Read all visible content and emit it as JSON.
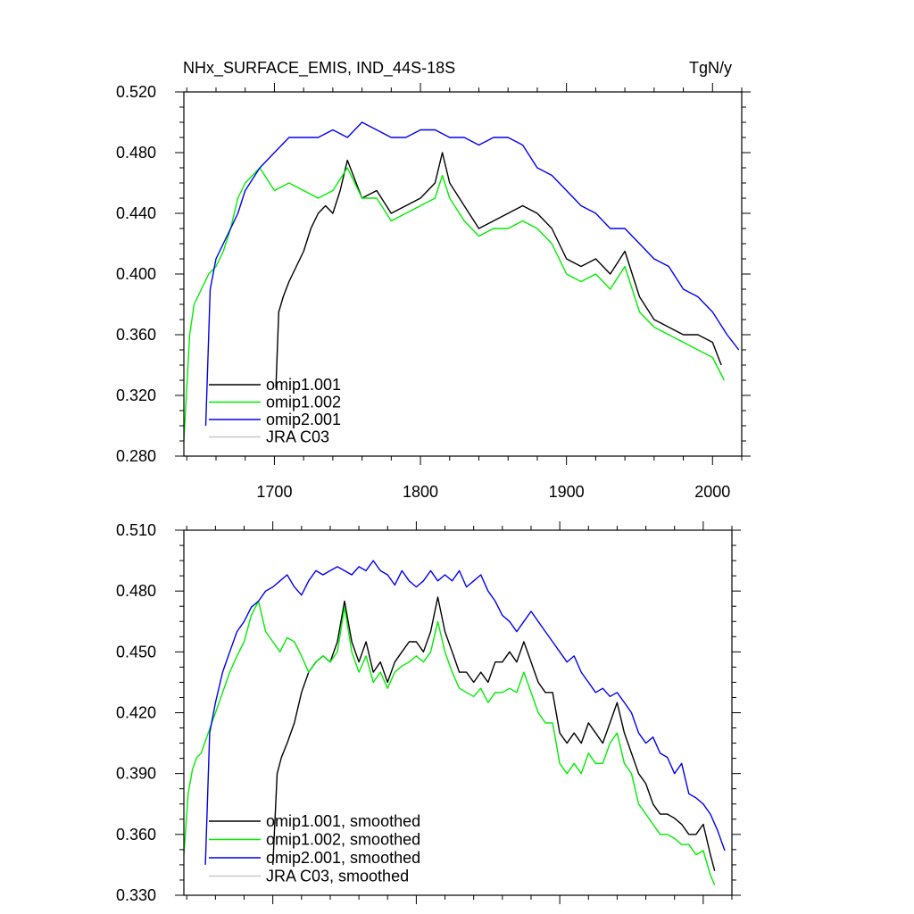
{
  "figure": {
    "title_left": "NHx_SURFACE_EMIS, IND_44S-18S",
    "title_right": "TgN/y"
  },
  "colors": {
    "omip1_001": "#000000",
    "omip1_002": "#00ee00",
    "omip2_001": "#0000ee",
    "jra_c03": "#c8c8c8"
  },
  "chart_data": [
    {
      "type": "line",
      "title": "NHx_SURFACE_EMIS, IND_44S-18S",
      "units": "TgN/y",
      "xlabel": "",
      "ylabel": "",
      "xlim": [
        1638,
        2020
      ],
      "ylim": [
        0.28,
        0.52
      ],
      "grid": false,
      "legend_position": "bottom-left",
      "xticks": [
        1700,
        1800,
        1900,
        2000
      ],
      "xtick_labels": [
        "1700",
        "1800",
        "1900",
        "2000"
      ],
      "yticks": [
        0.28,
        0.32,
        0.36,
        0.4,
        0.44,
        0.48,
        0.52
      ],
      "ytick_labels": [
        "0.280",
        "0.320",
        "0.360",
        "0.400",
        "0.440",
        "0.480",
        "0.520"
      ],
      "series": [
        {
          "name": "omip1.001",
          "color_key": "omip1_001",
          "x": [
            1701,
            1703,
            1706,
            1710,
            1715,
            1720,
            1725,
            1730,
            1735,
            1740,
            1745,
            1750,
            1760,
            1770,
            1780,
            1790,
            1800,
            1810,
            1815,
            1820,
            1830,
            1840,
            1850,
            1860,
            1870,
            1880,
            1890,
            1900,
            1910,
            1920,
            1930,
            1940,
            1950,
            1960,
            1970,
            1980,
            1990,
            2000,
            2006
          ],
          "y": [
            0.325,
            0.375,
            0.385,
            0.395,
            0.405,
            0.415,
            0.43,
            0.44,
            0.445,
            0.44,
            0.455,
            0.475,
            0.45,
            0.455,
            0.44,
            0.445,
            0.45,
            0.46,
            0.48,
            0.46,
            0.445,
            0.43,
            0.435,
            0.44,
            0.445,
            0.44,
            0.43,
            0.41,
            0.405,
            0.41,
            0.4,
            0.415,
            0.385,
            0.37,
            0.365,
            0.36,
            0.36,
            0.355,
            0.34
          ]
        },
        {
          "name": "omip1.002",
          "color_key": "omip1_002",
          "x": [
            1638,
            1642,
            1645,
            1650,
            1655,
            1660,
            1665,
            1670,
            1675,
            1680,
            1685,
            1690,
            1700,
            1710,
            1720,
            1730,
            1740,
            1750,
            1760,
            1770,
            1780,
            1790,
            1800,
            1810,
            1815,
            1820,
            1830,
            1840,
            1850,
            1860,
            1870,
            1880,
            1890,
            1900,
            1910,
            1920,
            1930,
            1940,
            1950,
            1960,
            1970,
            1980,
            1990,
            2000,
            2008
          ],
          "y": [
            0.29,
            0.36,
            0.38,
            0.39,
            0.4,
            0.405,
            0.415,
            0.43,
            0.45,
            0.46,
            0.465,
            0.47,
            0.455,
            0.46,
            0.455,
            0.45,
            0.455,
            0.47,
            0.45,
            0.45,
            0.435,
            0.44,
            0.445,
            0.45,
            0.465,
            0.45,
            0.435,
            0.425,
            0.43,
            0.43,
            0.435,
            0.43,
            0.42,
            0.4,
            0.395,
            0.4,
            0.39,
            0.405,
            0.375,
            0.365,
            0.36,
            0.355,
            0.35,
            0.345,
            0.33
          ]
        },
        {
          "name": "omip2.001",
          "color_key": "omip2_001",
          "x": [
            1653,
            1656,
            1660,
            1665,
            1670,
            1675,
            1680,
            1690,
            1700,
            1710,
            1720,
            1730,
            1740,
            1750,
            1760,
            1770,
            1780,
            1790,
            1800,
            1810,
            1820,
            1830,
            1840,
            1850,
            1860,
            1870,
            1880,
            1890,
            1900,
            1910,
            1920,
            1930,
            1940,
            1950,
            1960,
            1970,
            1980,
            1990,
            2000,
            2010,
            2018
          ],
          "y": [
            0.3,
            0.39,
            0.41,
            0.42,
            0.43,
            0.44,
            0.455,
            0.47,
            0.48,
            0.49,
            0.49,
            0.49,
            0.495,
            0.49,
            0.5,
            0.495,
            0.49,
            0.49,
            0.495,
            0.495,
            0.49,
            0.49,
            0.485,
            0.49,
            0.49,
            0.485,
            0.47,
            0.465,
            0.455,
            0.445,
            0.44,
            0.43,
            0.43,
            0.42,
            0.41,
            0.405,
            0.39,
            0.385,
            0.375,
            0.36,
            0.35
          ]
        },
        {
          "name": "JRA C03",
          "color_key": "jra_c03",
          "x": [],
          "y": []
        }
      ]
    },
    {
      "type": "line",
      "title": "",
      "xlabel": "",
      "ylabel": "",
      "xlim": [
        1638,
        2020
      ],
      "ylim": [
        0.33,
        0.51
      ],
      "grid": false,
      "legend_position": "bottom-left",
      "xticks": [
        1700,
        1800,
        1900,
        2000
      ],
      "xtick_labels": [],
      "yticks": [
        0.33,
        0.36,
        0.39,
        0.42,
        0.45,
        0.48,
        0.51
      ],
      "ytick_labels": [
        "0.330",
        "0.360",
        "0.390",
        "0.420",
        "0.450",
        "0.480",
        "0.510"
      ],
      "series": [
        {
          "name": "omip1.001, smoothed",
          "color_key": "omip1_001",
          "x": [
            1700,
            1703,
            1706,
            1710,
            1715,
            1720,
            1725,
            1730,
            1735,
            1740,
            1745,
            1750,
            1755,
            1760,
            1765,
            1770,
            1775,
            1780,
            1785,
            1790,
            1795,
            1800,
            1805,
            1810,
            1815,
            1820,
            1825,
            1830,
            1835,
            1840,
            1845,
            1850,
            1855,
            1860,
            1865,
            1870,
            1875,
            1880,
            1885,
            1890,
            1895,
            1900,
            1905,
            1910,
            1915,
            1920,
            1925,
            1930,
            1935,
            1940,
            1945,
            1950,
            1955,
            1960,
            1965,
            1970,
            1975,
            1980,
            1985,
            1990,
            1995,
            2000,
            2005,
            2008
          ],
          "y": [
            0.345,
            0.39,
            0.398,
            0.405,
            0.415,
            0.43,
            0.44,
            0.445,
            0.448,
            0.445,
            0.455,
            0.475,
            0.455,
            0.445,
            0.455,
            0.44,
            0.445,
            0.435,
            0.445,
            0.45,
            0.455,
            0.455,
            0.45,
            0.46,
            0.477,
            0.46,
            0.45,
            0.44,
            0.44,
            0.435,
            0.44,
            0.435,
            0.445,
            0.445,
            0.45,
            0.445,
            0.455,
            0.445,
            0.435,
            0.43,
            0.43,
            0.41,
            0.405,
            0.41,
            0.405,
            0.415,
            0.41,
            0.405,
            0.415,
            0.425,
            0.41,
            0.4,
            0.39,
            0.385,
            0.375,
            0.37,
            0.37,
            0.368,
            0.365,
            0.36,
            0.36,
            0.365,
            0.35,
            0.342
          ]
        },
        {
          "name": "omip1.002, smoothed",
          "color_key": "omip1_002",
          "x": [
            1638,
            1641,
            1644,
            1647,
            1650,
            1655,
            1660,
            1665,
            1670,
            1675,
            1680,
            1685,
            1690,
            1695,
            1700,
            1705,
            1710,
            1715,
            1720,
            1725,
            1730,
            1735,
            1740,
            1745,
            1750,
            1755,
            1760,
            1765,
            1770,
            1775,
            1780,
            1785,
            1790,
            1795,
            1800,
            1805,
            1810,
            1815,
            1820,
            1825,
            1830,
            1835,
            1840,
            1845,
            1850,
            1855,
            1860,
            1865,
            1870,
            1875,
            1880,
            1885,
            1890,
            1895,
            1900,
            1905,
            1910,
            1915,
            1920,
            1925,
            1930,
            1935,
            1940,
            1945,
            1950,
            1955,
            1960,
            1965,
            1970,
            1975,
            1980,
            1985,
            1990,
            1995,
            2000,
            2005,
            2008
          ],
          "y": [
            0.35,
            0.38,
            0.392,
            0.398,
            0.4,
            0.41,
            0.42,
            0.43,
            0.44,
            0.448,
            0.455,
            0.468,
            0.475,
            0.46,
            0.455,
            0.45,
            0.457,
            0.455,
            0.448,
            0.44,
            0.445,
            0.448,
            0.445,
            0.45,
            0.472,
            0.45,
            0.44,
            0.448,
            0.435,
            0.44,
            0.432,
            0.44,
            0.443,
            0.445,
            0.448,
            0.445,
            0.45,
            0.465,
            0.45,
            0.44,
            0.432,
            0.43,
            0.428,
            0.432,
            0.425,
            0.43,
            0.43,
            0.432,
            0.43,
            0.44,
            0.43,
            0.42,
            0.415,
            0.415,
            0.395,
            0.39,
            0.395,
            0.39,
            0.4,
            0.395,
            0.395,
            0.405,
            0.41,
            0.395,
            0.39,
            0.375,
            0.37,
            0.365,
            0.36,
            0.36,
            0.358,
            0.355,
            0.355,
            0.35,
            0.352,
            0.34,
            0.335
          ]
        },
        {
          "name": "omip2.001, smoothed",
          "color_key": "omip2_001",
          "x": [
            1653,
            1656,
            1660,
            1665,
            1670,
            1675,
            1680,
            1685,
            1690,
            1695,
            1700,
            1705,
            1710,
            1715,
            1720,
            1725,
            1730,
            1735,
            1740,
            1745,
            1750,
            1755,
            1760,
            1765,
            1770,
            1775,
            1780,
            1785,
            1790,
            1795,
            1800,
            1805,
            1810,
            1815,
            1820,
            1825,
            1830,
            1835,
            1840,
            1845,
            1850,
            1855,
            1860,
            1865,
            1870,
            1875,
            1880,
            1885,
            1890,
            1895,
            1900,
            1905,
            1910,
            1915,
            1920,
            1925,
            1930,
            1935,
            1940,
            1945,
            1950,
            1955,
            1960,
            1965,
            1970,
            1975,
            1980,
            1985,
            1990,
            1995,
            2000,
            2005,
            2010,
            2015
          ],
          "y": [
            0.345,
            0.41,
            0.425,
            0.44,
            0.45,
            0.46,
            0.465,
            0.472,
            0.475,
            0.48,
            0.482,
            0.485,
            0.488,
            0.482,
            0.478,
            0.485,
            0.49,
            0.488,
            0.49,
            0.492,
            0.49,
            0.488,
            0.492,
            0.49,
            0.495,
            0.49,
            0.488,
            0.483,
            0.49,
            0.485,
            0.482,
            0.485,
            0.49,
            0.485,
            0.488,
            0.485,
            0.49,
            0.482,
            0.485,
            0.488,
            0.48,
            0.475,
            0.468,
            0.465,
            0.46,
            0.465,
            0.47,
            0.465,
            0.46,
            0.455,
            0.45,
            0.445,
            0.448,
            0.44,
            0.435,
            0.43,
            0.432,
            0.428,
            0.43,
            0.425,
            0.42,
            0.41,
            0.405,
            0.408,
            0.4,
            0.398,
            0.39,
            0.395,
            0.38,
            0.378,
            0.375,
            0.37,
            0.362,
            0.352
          ]
        },
        {
          "name": "JRA C03, smoothed",
          "color_key": "jra_c03",
          "x": [],
          "y": []
        }
      ]
    }
  ]
}
